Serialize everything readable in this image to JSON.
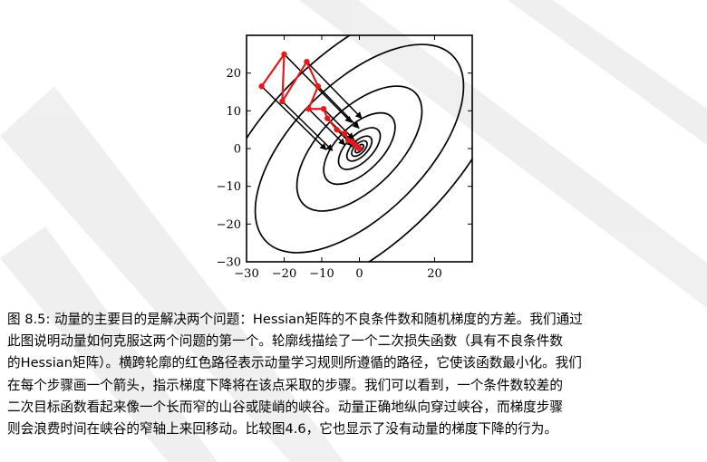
{
  "figure": {
    "chart_data": {
      "type": "contour-plot",
      "xlim": [
        -30,
        30
      ],
      "ylim": [
        -30,
        30
      ],
      "x_ticks": [
        "−30",
        "−20",
        "−10",
        "0",
        "20"
      ],
      "y_ticks": [
        "20",
        "10",
        "0",
        "−10",
        "−20",
        "−30"
      ],
      "grid": false,
      "contour_center": [
        0,
        0
      ],
      "contour_levels_semi_axes": [
        [
          1.4,
          0.7
        ],
        [
          2.6,
          1.3
        ],
        [
          4.2,
          2.1
        ],
        [
          7,
          3.5
        ],
        [
          12,
          6
        ],
        [
          21,
          10.5
        ],
        [
          35,
          17.5
        ],
        [
          50,
          25
        ]
      ],
      "contour_angle_deg": 45,
      "path_color": "#e31a1c",
      "momentum_path": [
        [
          -26,
          16.5
        ],
        [
          -20,
          25
        ],
        [
          -20.5,
          12.5
        ],
        [
          -14,
          23
        ],
        [
          -11,
          16.5
        ],
        [
          -13.5,
          10.5
        ],
        [
          -9.5,
          10.5
        ],
        [
          -8.5,
          8
        ],
        [
          -6,
          5
        ],
        [
          -4,
          4
        ],
        [
          -3,
          2.2
        ],
        [
          -2,
          1.8
        ],
        [
          -1.2,
          1
        ],
        [
          -0.5,
          0.4
        ],
        [
          0,
          0
        ]
      ]
    }
  },
  "caption": {
    "lines": [
      "图 8.5: 动量的主要目的是解决两个问题：Hessian矩阵的不良条件数和随机梯度的方差。我们通过",
      "此图说明动量如何克服这两个问题的第一个。轮廓线描绘了一个二次损失函数（具有不良条件数",
      "的Hessian矩阵）。横跨轮廓的红色路径表示动量学习规则所遵循的路径，它使该函数最小化。我们",
      "在每个步骤画一个箭头，指示梯度下降将在该点采取的步骤。我们可以看到，一个条件数较差的",
      "二次目标函数看起来像一个长而窄的山谷或陡峭的峡谷。动量正确地纵向穿过峡谷，而梯度步骤",
      "则会浪费时间在峡谷的窄轴上来回移动。比较图4.6，它也显示了没有动量的梯度下降的行为。"
    ]
  }
}
